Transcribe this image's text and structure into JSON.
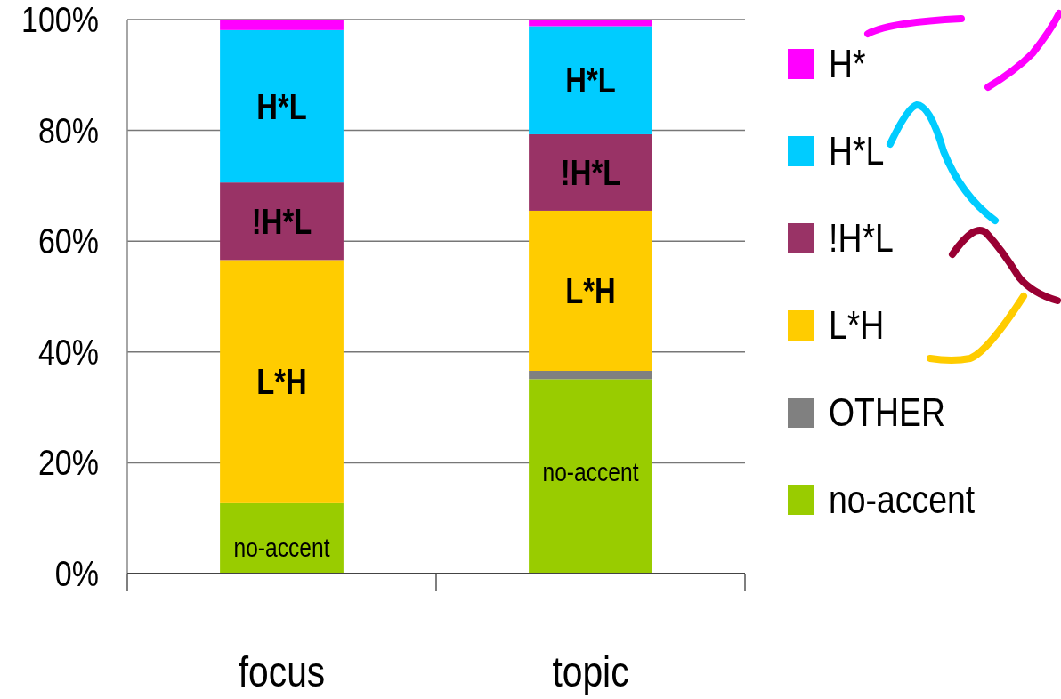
{
  "chart_data": {
    "type": "bar",
    "stacked": true,
    "categories": [
      "focus",
      "topic"
    ],
    "series": [
      {
        "name": "no-accent",
        "color": "#99cc00",
        "values": [
          12.7,
          35.1
        ]
      },
      {
        "name": "OTHER",
        "color": "#808080",
        "values": [
          0,
          1.5
        ]
      },
      {
        "name": "L*H",
        "color": "#ffcc00",
        "values": [
          43.9,
          28.9
        ]
      },
      {
        "name": "!H*L",
        "color": "#993366",
        "values": [
          14.0,
          13.8
        ]
      },
      {
        "name": "H*L",
        "color": "#00ccff",
        "values": [
          27.5,
          19.5
        ]
      },
      {
        "name": "H*",
        "color": "#ff00ff",
        "values": [
          1.9,
          1.2
        ]
      }
    ],
    "ylim": [
      0,
      100
    ],
    "yticks": [
      {
        "value": 0,
        "label": "0%"
      },
      {
        "value": 20,
        "label": "20%"
      },
      {
        "value": 40,
        "label": "40%"
      },
      {
        "value": 60,
        "label": "60%"
      },
      {
        "value": 80,
        "label": "80%"
      },
      {
        "value": 100,
        "label": "100%"
      }
    ],
    "grid": "y",
    "legend": "right",
    "annotations": [
      "no-accent",
      "L*H",
      "!H*L",
      "H*L",
      "no-accent",
      "L*H",
      "!H*L",
      "H*L"
    ]
  }
}
